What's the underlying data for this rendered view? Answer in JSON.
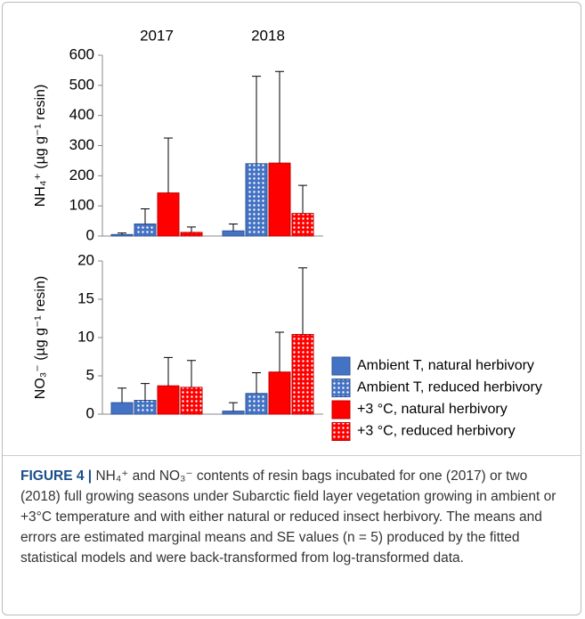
{
  "chart_data": [
    {
      "type": "bar",
      "ylabel": "NH₄⁺ (µg g⁻¹ resin)",
      "categories": [
        "2017",
        "2018"
      ],
      "ylim": [
        0,
        600
      ],
      "yticks": [
        0,
        100,
        200,
        300,
        400,
        500,
        600
      ],
      "series": [
        {
          "color": "#4472c4",
          "pattern": null,
          "values": [
            5,
            17
          ],
          "errors": [
            5,
            23
          ]
        },
        {
          "color": "#4472c4",
          "pattern": "dots",
          "values": [
            40,
            240
          ],
          "errors": [
            50,
            290
          ]
        },
        {
          "color": "#ff0000",
          "pattern": null,
          "values": [
            143,
            242
          ],
          "errors": [
            182,
            304
          ]
        },
        {
          "color": "#ff0000",
          "pattern": "dots",
          "values": [
            12,
            75
          ],
          "errors": [
            18,
            93
          ]
        }
      ]
    },
    {
      "type": "bar",
      "ylabel": "NO₃⁻ (µg g⁻¹ resin)",
      "categories": [
        null,
        null
      ],
      "ylim": [
        0,
        20
      ],
      "yticks": [
        0,
        5,
        10,
        15,
        20
      ],
      "legend": "right",
      "series": [
        {
          "name": "Ambient T, natural herbivory",
          "color": "#4472c4",
          "pattern": null,
          "values": [
            1.5,
            0.4
          ],
          "errors": [
            1.9,
            1.1
          ]
        },
        {
          "name": "Ambient T, reduced herbivory",
          "color": "#4472c4",
          "pattern": "dots",
          "values": [
            1.8,
            2.7
          ],
          "errors": [
            2.2,
            2.7
          ]
        },
        {
          "name": "+3 °C, natural herbivory",
          "color": "#ff0000",
          "pattern": null,
          "values": [
            3.7,
            5.5
          ],
          "errors": [
            3.7,
            5.2
          ]
        },
        {
          "name": "+3 °C, reduced herbivory",
          "color": "#ff0000",
          "pattern": "dots",
          "values": [
            3.5,
            10.4
          ],
          "errors": [
            3.5,
            8.7
          ]
        }
      ]
    }
  ],
  "caption": {
    "label": "FIGURE 4 |",
    "text": "NH₄⁺ and NO₃⁻ contents of resin bags incubated for one (2017) or two (2018) full growing seasons under Subarctic field layer vegetation growing in ambient or +3°C temperature and with either natural or reduced insect herbivory. The means and errors are estimated marginal means and SE values (n = 5) produced by the fitted statistical models and were back-transformed from log-transformed data."
  }
}
